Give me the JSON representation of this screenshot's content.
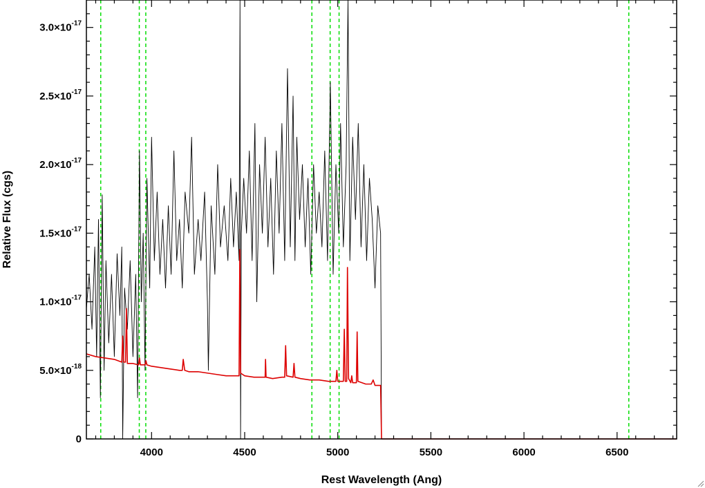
{
  "chart_data": {
    "type": "line",
    "xlabel": "Rest Wavelength (Ang)",
    "ylabel": "Relative Flux (cgs)",
    "xlim": [
      3650,
      6820
    ],
    "ylim": [
      0,
      3.2e-17
    ],
    "x_ticks": [
      4000,
      4500,
      5000,
      5500,
      6000,
      6500
    ],
    "x_tick_labels": [
      "4000",
      "4500",
      "5000",
      "5500",
      "6000",
      "6500"
    ],
    "x_minor_step": 100,
    "y_ticks": [
      0,
      5e-18,
      1e-17,
      1.5e-17,
      2e-17,
      2.5e-17,
      3e-17
    ],
    "y_tick_labels": [
      {
        "base": "0",
        "exp": ""
      },
      {
        "base": "5.0×10",
        "exp": "-18"
      },
      {
        "base": "1.0×10",
        "exp": "-17"
      },
      {
        "base": "1.5×10",
        "exp": "-17"
      },
      {
        "base": "2.0×10",
        "exp": "-17"
      },
      {
        "base": "2.5×10",
        "exp": "-17"
      },
      {
        "base": "3.0×10",
        "exp": "-17"
      }
    ],
    "y_minor_step": 1e-18,
    "grid": false,
    "vertical_markers": {
      "color": "#00dd00",
      "style": "dashed",
      "x": [
        3727,
        3934,
        3969,
        4861,
        4959,
        5007,
        6563
      ]
    },
    "series": [
      {
        "color": "#000000",
        "points": [
          [
            3650,
            9.5e-18
          ],
          [
            3665,
            1.2e-17
          ],
          [
            3680,
            8e-18
          ],
          [
            3695,
            1.4e-17
          ],
          [
            3705,
            6e-18
          ],
          [
            3715,
            1.6e-17
          ],
          [
            3725,
            3e-18
          ],
          [
            3735,
            1.78e-17
          ],
          [
            3745,
            5e-18
          ],
          [
            3755,
            1.3e-17
          ],
          [
            3770,
            7e-18
          ],
          [
            3785,
            1.2e-17
          ],
          [
            3800,
            6e-18
          ],
          [
            3815,
            1.35e-17
          ],
          [
            3830,
            9e-18
          ],
          [
            3840,
            1.4e-17
          ],
          [
            3845,
            0
          ],
          [
            3855,
            1.1e-17
          ],
          [
            3870,
            8e-18
          ],
          [
            3885,
            1.3e-17
          ],
          [
            3900,
            6e-18
          ],
          [
            3915,
            1.2e-17
          ],
          [
            3925,
            3e-18
          ],
          [
            3935,
            2.1e-17
          ],
          [
            3945,
            1e-17
          ],
          [
            3955,
            1.5e-17
          ],
          [
            3965,
            5e-18
          ],
          [
            3975,
            1.9e-17
          ],
          [
            3990,
            1.1e-17
          ],
          [
            4000,
            2.2e-17
          ],
          [
            4015,
            1.3e-17
          ],
          [
            4030,
            1.8e-17
          ],
          [
            4045,
            1.2e-17
          ],
          [
            4060,
            1.6e-17
          ],
          [
            4075,
            1.1e-17
          ],
          [
            4090,
            1.7e-17
          ],
          [
            4105,
            1.2e-17
          ],
          [
            4120,
            2.1e-17
          ],
          [
            4135,
            1.3e-17
          ],
          [
            4150,
            1.6e-17
          ],
          [
            4165,
            1.1e-17
          ],
          [
            4180,
            1.8e-17
          ],
          [
            4200,
            1.5e-17
          ],
          [
            4215,
            2.2e-17
          ],
          [
            4230,
            1.2e-17
          ],
          [
            4250,
            1.6e-17
          ],
          [
            4265,
            1.3e-17
          ],
          [
            4285,
            1.8e-17
          ],
          [
            4300,
            1e-17
          ],
          [
            4305,
            5e-18
          ],
          [
            4320,
            1.7e-17
          ],
          [
            4340,
            1.2e-17
          ],
          [
            4355,
            2e-17
          ],
          [
            4370,
            1.4e-17
          ],
          [
            4390,
            1.7e-17
          ],
          [
            4410,
            1.3e-17
          ],
          [
            4425,
            1.9e-17
          ],
          [
            4440,
            1.4e-17
          ],
          [
            4455,
            1.8e-17
          ],
          [
            4470,
            1.3e-17
          ],
          [
            4475,
            3.2e-17
          ],
          [
            4478,
            0
          ],
          [
            4482,
            1.5e-17
          ],
          [
            4495,
            1.9e-17
          ],
          [
            4510,
            1.5e-17
          ],
          [
            4525,
            2.1e-17
          ],
          [
            4540,
            1.3e-17
          ],
          [
            4555,
            2.3e-17
          ],
          [
            4565,
            1e-17
          ],
          [
            4580,
            2e-17
          ],
          [
            4595,
            1.5e-17
          ],
          [
            4610,
            2.2e-17
          ],
          [
            4625,
            1.4e-17
          ],
          [
            4640,
            1.9e-17
          ],
          [
            4655,
            1.2e-17
          ],
          [
            4670,
            2.1e-17
          ],
          [
            4685,
            1.5e-17
          ],
          [
            4700,
            2.3e-17
          ],
          [
            4715,
            1.3e-17
          ],
          [
            4730,
            2.7e-17
          ],
          [
            4745,
            1.4e-17
          ],
          [
            4760,
            2.5e-17
          ],
          [
            4770,
            1.3e-17
          ],
          [
            4780,
            2.2e-17
          ],
          [
            4795,
            1.6e-17
          ],
          [
            4810,
            2e-17
          ],
          [
            4825,
            1.4e-17
          ],
          [
            4840,
            1.9e-17
          ],
          [
            4855,
            1.2e-17
          ],
          [
            4870,
            2e-17
          ],
          [
            4885,
            1.5e-17
          ],
          [
            4900,
            1.8e-17
          ],
          [
            4915,
            1.4e-17
          ],
          [
            4930,
            2.1e-17
          ],
          [
            4945,
            1.3e-17
          ],
          [
            4960,
            2.6e-17
          ],
          [
            4975,
            1.2e-17
          ],
          [
            4990,
            2e-17
          ],
          [
            5005,
            1.5e-17
          ],
          [
            5015,
            2.3e-17
          ],
          [
            5030,
            1.4e-17
          ],
          [
            5045,
            2e-17
          ],
          [
            5055,
            3.2e-17
          ],
          [
            5065,
            1.3e-17
          ],
          [
            5080,
            2.2e-17
          ],
          [
            5095,
            1.6e-17
          ],
          [
            5110,
            2.3e-17
          ],
          [
            5125,
            1.4e-17
          ],
          [
            5140,
            2e-17
          ],
          [
            5155,
            1.3e-17
          ],
          [
            5170,
            1.9e-17
          ],
          [
            5185,
            1.6e-17
          ],
          [
            5200,
            1.1e-17
          ],
          [
            5215,
            1.7e-17
          ],
          [
            5230,
            1.5e-17
          ],
          [
            5235,
            0
          ],
          [
            6820,
            0
          ]
        ]
      },
      {
        "color": "#dd0000",
        "points": [
          [
            3650,
            6.2e-18
          ],
          [
            3700,
            6e-18
          ],
          [
            3750,
            5.9e-18
          ],
          [
            3800,
            5.8e-18
          ],
          [
            3840,
            5.6e-18
          ],
          [
            3845,
            7.5e-18
          ],
          [
            3850,
            5.6e-18
          ],
          [
            3860,
            5.6e-18
          ],
          [
            3865,
            9.5e-18
          ],
          [
            3870,
            5.5e-18
          ],
          [
            3900,
            5.5e-18
          ],
          [
            3930,
            5.4e-18
          ],
          [
            3935,
            5.9e-18
          ],
          [
            3940,
            5.4e-18
          ],
          [
            3965,
            5.4e-18
          ],
          [
            3970,
            5.7e-18
          ],
          [
            3975,
            5.4e-18
          ],
          [
            4000,
            5.3e-18
          ],
          [
            4050,
            5.2e-18
          ],
          [
            4100,
            5.1e-18
          ],
          [
            4150,
            5e-18
          ],
          [
            4165,
            5e-18
          ],
          [
            4170,
            5.8e-18
          ],
          [
            4178,
            5e-18
          ],
          [
            4200,
            4.9e-18
          ],
          [
            4250,
            4.9e-18
          ],
          [
            4300,
            4.8e-18
          ],
          [
            4350,
            4.7e-18
          ],
          [
            4400,
            4.6e-18
          ],
          [
            4450,
            4.6e-18
          ],
          [
            4470,
            4.6e-18
          ],
          [
            4474,
            1.38e-17
          ],
          [
            4478,
            4.8e-18
          ],
          [
            4500,
            4.6e-18
          ],
          [
            4550,
            4.5e-18
          ],
          [
            4600,
            4.5e-18
          ],
          [
            4610,
            4.5e-18
          ],
          [
            4612,
            5.8e-18
          ],
          [
            4615,
            4.5e-18
          ],
          [
            4650,
            4.4e-18
          ],
          [
            4700,
            4.5e-18
          ],
          [
            4715,
            4.5e-18
          ],
          [
            4720,
            6.8e-18
          ],
          [
            4725,
            4.6e-18
          ],
          [
            4760,
            4.5e-18
          ],
          [
            4765,
            5.5e-18
          ],
          [
            4770,
            4.5e-18
          ],
          [
            4800,
            4.4e-18
          ],
          [
            4850,
            4.3e-18
          ],
          [
            4900,
            4.3e-18
          ],
          [
            4950,
            4.2e-18
          ],
          [
            4990,
            4.2e-18
          ],
          [
            4995,
            5e-18
          ],
          [
            5000,
            4.2e-18
          ],
          [
            5030,
            4.2e-18
          ],
          [
            5035,
            8e-18
          ],
          [
            5040,
            4.2e-18
          ],
          [
            5048,
            4.2e-18
          ],
          [
            5052,
            1.25e-17
          ],
          [
            5058,
            4.4e-18
          ],
          [
            5070,
            4.1e-18
          ],
          [
            5075,
            4.6e-18
          ],
          [
            5080,
            4.1e-18
          ],
          [
            5100,
            4.1e-18
          ],
          [
            5104,
            7.8e-18
          ],
          [
            5108,
            4.2e-18
          ],
          [
            5150,
            4e-18
          ],
          [
            5180,
            4e-18
          ],
          [
            5190,
            4.3e-18
          ],
          [
            5200,
            3.9e-18
          ],
          [
            5230,
            3.9e-18
          ],
          [
            5235,
            0
          ],
          [
            6820,
            0
          ]
        ]
      }
    ]
  }
}
